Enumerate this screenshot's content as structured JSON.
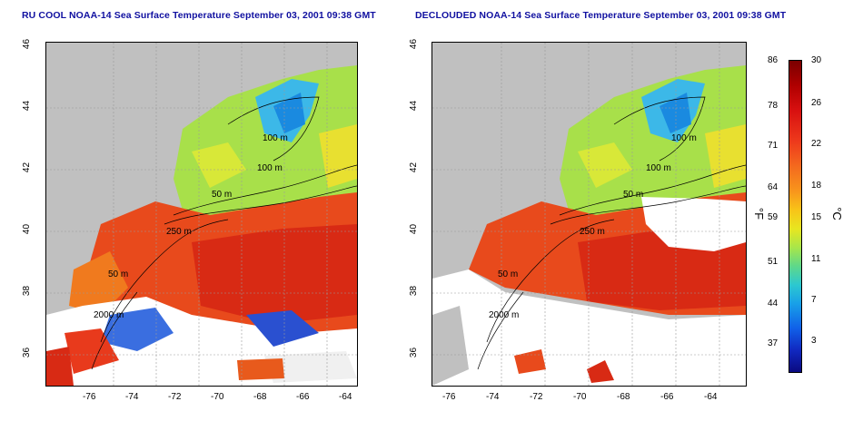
{
  "titles": {
    "left": "RU COOL NOAA-14 Sea Surface Temperature September 03, 2001 09:38 GMT",
    "right": "DECLOUDED NOAA-14 Sea Surface Temperature September 03, 2001 09:38 GMT"
  },
  "axes": {
    "x_ticks": [
      "-76",
      "-74",
      "-72",
      "-70",
      "-68",
      "-66",
      "-64"
    ],
    "y_ticks": [
      "46",
      "44",
      "42",
      "40",
      "38",
      "36"
    ]
  },
  "contours": {
    "left": [
      "100 m",
      "100 m",
      "50 m",
      "250 m",
      "50 m",
      "2000 m"
    ],
    "right": [
      "100 m",
      "100 m",
      "50 m",
      "250 m",
      "50 m",
      "2000 m"
    ]
  },
  "colorbar": {
    "fahrenheit": [
      "86",
      "78",
      "71",
      "64",
      "59",
      "51",
      "44",
      "37"
    ],
    "celsius": [
      "30",
      "26",
      "22",
      "18",
      "15",
      "11",
      "7",
      "3"
    ],
    "unit_f": "°F",
    "unit_c": "°C"
  },
  "colors": {
    "land": "#c0c0c0",
    "cloud": "#ffffff",
    "warm": "#e03a1c",
    "hot": "#c01010",
    "cool": "#9ee05a",
    "cold": "#30a0e8",
    "title": "#1010a0"
  }
}
